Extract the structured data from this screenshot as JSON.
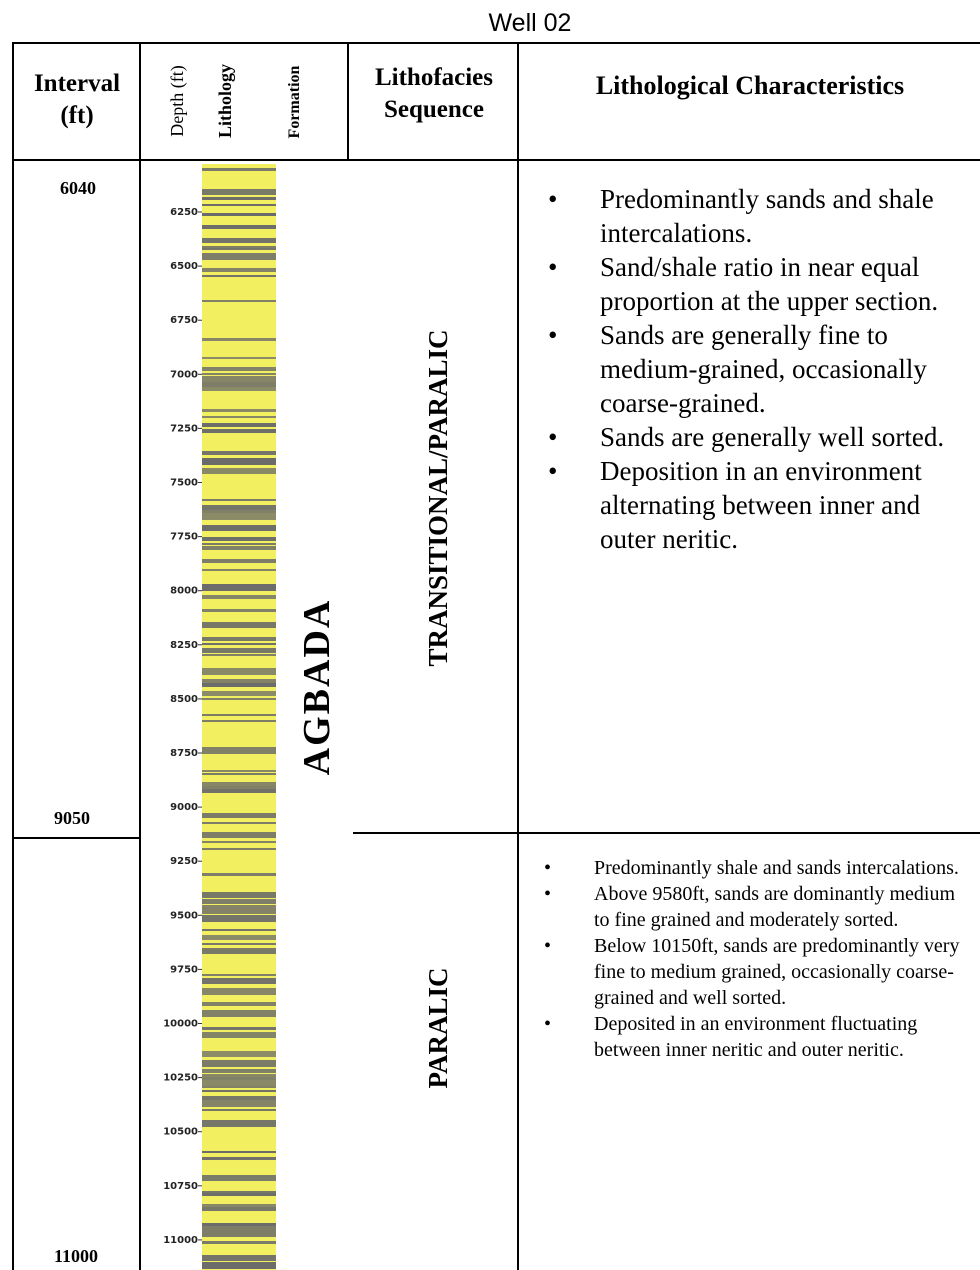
{
  "title": "Well 02",
  "headers": {
    "interval": "Interval (ft)",
    "depth": "Depth (ft)",
    "lithology": "Lithology",
    "formation": "Formation",
    "sequence": "Lithofacies Sequence",
    "characteristics": "Lithological Characteristics"
  },
  "intervals": [
    {
      "top": "6040",
      "bottom": "9050"
    },
    {
      "bottom": "11000"
    }
  ],
  "depth_ticks": [
    "6250",
    "6500",
    "6750",
    "7000",
    "7250",
    "7500",
    "7750",
    "8000",
    "8250",
    "8500",
    "8750",
    "9000",
    "9250",
    "9500",
    "9750",
    "10000",
    "10250",
    "10500",
    "10750",
    "11000"
  ],
  "formation": "AGBADA",
  "sequences": [
    {
      "name": "TRANSITIONAL/PARALIC",
      "characteristics": [
        "Predominantly sands and shale intercalations.",
        "Sand/shale ratio in near equal proportion at the upper section.",
        "Sands are generally fine to medium-grained, occasionally coarse-grained.",
        "Sands are generally well sorted.",
        "Deposition in an environment alternating between inner and outer neritic."
      ]
    },
    {
      "name": "PARALIC",
      "characteristics": [
        "Predominantly  shale and sands intercalations.",
        "Above 9580ft, sands are dominantly medium to fine grained and moderately sorted.",
        "Below 10150ft, sands are predominantly very fine to medium grained, occasionally coarse-grained and well sorted.",
        "Deposited  in an environment fluctuating between inner neritic and outer neritic."
      ]
    }
  ],
  "colors": {
    "sand": "#f2f060",
    "shale": "#6a6a6a"
  }
}
